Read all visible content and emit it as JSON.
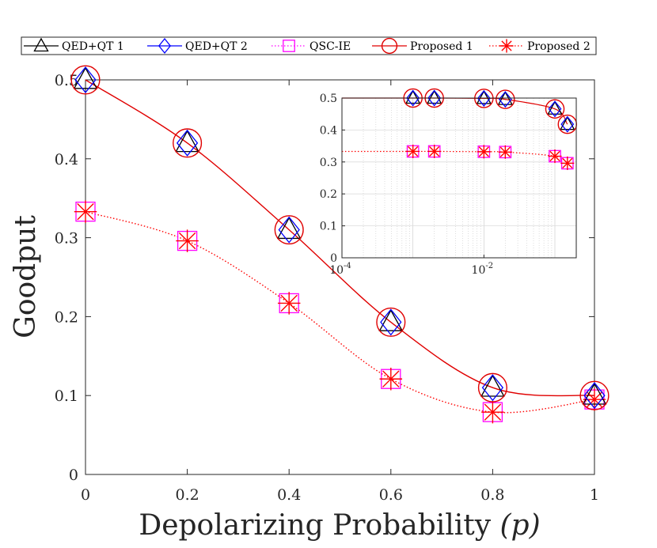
{
  "chart_data": [
    {
      "type": "line",
      "xlabel": "Depolarizing Probability (p)",
      "xlabel_parts": {
        "text": "Depolarizing Probability ",
        "var": "(p)"
      },
      "ylabel": "Goodput",
      "xlim": [
        0,
        1
      ],
      "ylim": [
        0,
        0.5
      ],
      "xticks": [
        0,
        0.2,
        0.4,
        0.6,
        0.8,
        1
      ],
      "xtick_labels": [
        "0",
        "0.2",
        "0.4",
        "0.6",
        "0.8",
        "1"
      ],
      "yticks": [
        0,
        0.1,
        0.2,
        0.3,
        0.4,
        0.5
      ],
      "ytick_labels": [
        "0",
        "0.1",
        "0.2",
        "0.3",
        "0.4",
        "0.5"
      ],
      "grid": false,
      "legend_position": "top",
      "x": [
        0,
        0.2,
        0.4,
        0.6,
        0.8,
        1
      ],
      "series": [
        {
          "name": "QED+QT 1",
          "marker": "triangle",
          "color": "#000000",
          "line": "solid",
          "values": [
            0.5,
            0.42,
            0.31,
            0.193,
            0.11,
            0.1
          ]
        },
        {
          "name": "QED+QT 2",
          "marker": "diamond",
          "color": "#0000ff",
          "line": "solid",
          "values": [
            0.5,
            0.42,
            0.31,
            0.193,
            0.11,
            0.1
          ]
        },
        {
          "name": "QSC-IE",
          "marker": "square",
          "color": "#ff00ff",
          "line": "dotted",
          "values": [
            0.333,
            0.296,
            0.217,
            0.121,
            0.079,
            0.095
          ]
        },
        {
          "name": "Proposed 1",
          "marker": "circle",
          "color": "#e00000",
          "line": "solid",
          "values": [
            0.5,
            0.42,
            0.31,
            0.193,
            0.11,
            0.1
          ]
        },
        {
          "name": "Proposed 2",
          "marker": "asterisk",
          "color": "#ff0000",
          "line": "dotted",
          "values": [
            0.333,
            0.296,
            0.217,
            0.121,
            0.079,
            0.095
          ]
        }
      ]
    },
    {
      "type": "line",
      "role": "inset",
      "xscale": "log",
      "xlim": [
        0.0001,
        0.2
      ],
      "ylim": [
        0,
        0.5
      ],
      "grid": true,
      "xtick_labels": [
        {
          "base": "10",
          "exp": "-4",
          "value": 0.0001
        },
        {
          "base": "10",
          "exp": "-2",
          "value": 0.01
        }
      ],
      "yticks": [
        0,
        0.1,
        0.2,
        0.3,
        0.4,
        0.5
      ],
      "ytick_labels": [
        "0",
        "0.1",
        "0.2",
        "0.3",
        "0.4",
        "0.5"
      ],
      "x": [
        0.001,
        0.002,
        0.01,
        0.02,
        0.1,
        0.15
      ],
      "series": [
        {
          "name": "QED+QT 1",
          "values": [
            0.5,
            0.5,
            0.499,
            0.496,
            0.466,
            0.418
          ]
        },
        {
          "name": "QED+QT 2",
          "values": [
            0.5,
            0.5,
            0.499,
            0.496,
            0.466,
            0.418
          ]
        },
        {
          "name": "QSC-IE",
          "values": [
            0.333,
            0.333,
            0.332,
            0.331,
            0.318,
            0.296
          ]
        },
        {
          "name": "Proposed 1",
          "values": [
            0.5,
            0.5,
            0.499,
            0.496,
            0.466,
            0.418
          ]
        },
        {
          "name": "Proposed 2",
          "values": [
            0.333,
            0.333,
            0.332,
            0.331,
            0.318,
            0.296
          ]
        }
      ]
    }
  ]
}
